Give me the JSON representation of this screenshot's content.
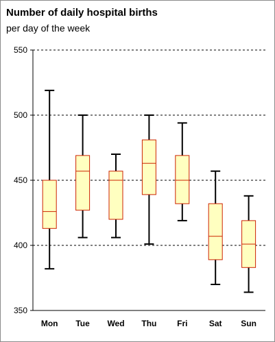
{
  "chart_data": {
    "type": "boxplot",
    "title": "Number of daily hospital births",
    "subtitle": "per day of the week",
    "xlabel": "",
    "ylabel": "",
    "ylim": [
      350,
      550
    ],
    "yticks": [
      350,
      400,
      450,
      500,
      550
    ],
    "grid": "horizontal dashed",
    "categories": [
      "Mon",
      "Tue",
      "Wed",
      "Thu",
      "Fri",
      "Sat",
      "Sun"
    ],
    "boxes": [
      {
        "min": 382,
        "q1": 413,
        "median": 426,
        "q3": 450,
        "max": 519
      },
      {
        "min": 406,
        "q1": 427,
        "median": 457,
        "q3": 469,
        "max": 500
      },
      {
        "min": 406,
        "q1": 420,
        "median": 450,
        "q3": 457,
        "max": 470
      },
      {
        "min": 401,
        "q1": 439,
        "median": 463,
        "q3": 481,
        "max": 500
      },
      {
        "min": 419,
        "q1": 432,
        "median": 450,
        "q3": 469,
        "max": 494
      },
      {
        "min": 370,
        "q1": 389,
        "median": 407,
        "q3": 432,
        "max": 457
      },
      {
        "min": 364,
        "q1": 383,
        "median": 401,
        "q3": 419,
        "max": 438
      }
    ],
    "colors": {
      "box_fill": "#ffffc0",
      "box_stroke": "#cc2200",
      "whisker": "#000000",
      "grid": "#000000"
    }
  }
}
